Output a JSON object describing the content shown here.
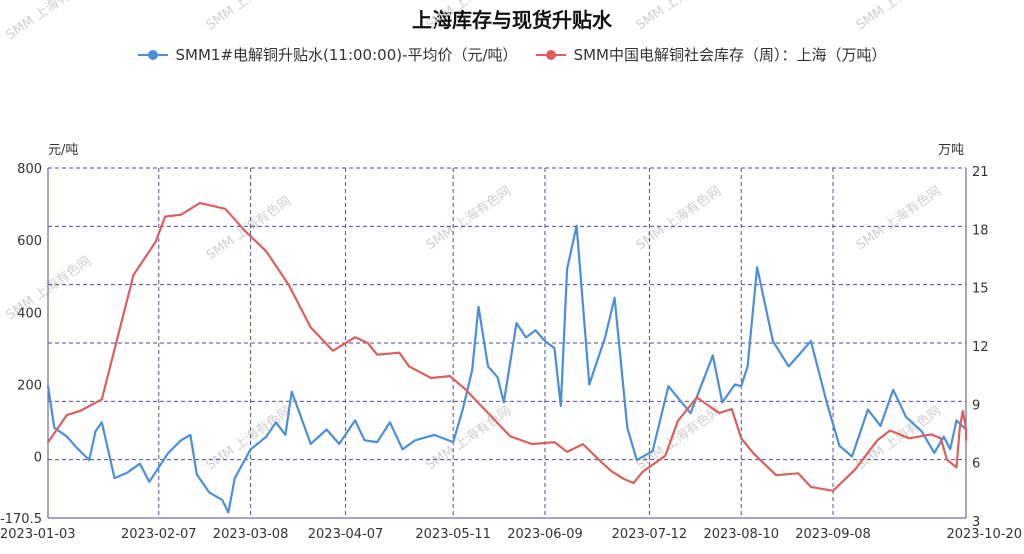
{
  "chart_data": {
    "type": "line",
    "title": "上海库存与现货升贴水",
    "left_unit": "元/吨",
    "right_unit": "万吨",
    "left_ylim": [
      -170.5,
      800
    ],
    "right_ylim": [
      3,
      21
    ],
    "left_ticks": [
      "800",
      "600",
      "400",
      "200",
      "0",
      "-170.5"
    ],
    "right_ticks": [
      "21",
      "18",
      "15",
      "12",
      "9",
      "6",
      "3"
    ],
    "x_range": [
      "2023-01-03",
      "2023-10-20"
    ],
    "x_ticks": [
      "2023-01-03",
      "2023-02-07",
      "2023-03-08",
      "2023-04-07",
      "2023-05-11",
      "2023-06-09",
      "2023-07-12",
      "2023-08-10",
      "2023-09-08",
      "2023-10-20"
    ],
    "grid": true,
    "legend_position": "top",
    "watermark": "SMM 上海有色网",
    "series": [
      {
        "name": "SMM1#电解铜升贴水(11:00:00)-平均价（元/吨）",
        "axis": "left",
        "color": "#4a8fd9",
        "points": [
          [
            "2023-01-03",
            195
          ],
          [
            "2023-01-05",
            80
          ],
          [
            "2023-01-09",
            55
          ],
          [
            "2023-01-12",
            25
          ],
          [
            "2023-01-16",
            -10
          ],
          [
            "2023-01-18",
            70
          ],
          [
            "2023-01-20",
            95
          ],
          [
            "2023-01-24",
            -60
          ],
          [
            "2023-01-28",
            -45
          ],
          [
            "2023-02-01",
            -20
          ],
          [
            "2023-02-04",
            -70
          ],
          [
            "2023-02-07",
            -30
          ],
          [
            "2023-02-10",
            10
          ],
          [
            "2023-02-14",
            45
          ],
          [
            "2023-02-17",
            60
          ],
          [
            "2023-02-19",
            -50
          ],
          [
            "2023-02-23",
            -100
          ],
          [
            "2023-02-27",
            -120
          ],
          [
            "2023-03-01",
            -155
          ],
          [
            "2023-03-03",
            -60
          ],
          [
            "2023-03-08",
            20
          ],
          [
            "2023-03-13",
            55
          ],
          [
            "2023-03-16",
            95
          ],
          [
            "2023-03-19",
            60
          ],
          [
            "2023-03-21",
            180
          ],
          [
            "2023-03-27",
            35
          ],
          [
            "2023-04-01",
            75
          ],
          [
            "2023-04-05",
            35
          ],
          [
            "2023-04-10",
            100
          ],
          [
            "2023-04-13",
            45
          ],
          [
            "2023-04-17",
            40
          ],
          [
            "2023-04-21",
            95
          ],
          [
            "2023-04-25",
            20
          ],
          [
            "2023-04-29",
            45
          ],
          [
            "2023-05-05",
            60
          ],
          [
            "2023-05-11",
            40
          ],
          [
            "2023-05-14",
            130
          ],
          [
            "2023-05-17",
            240
          ],
          [
            "2023-05-19",
            415
          ],
          [
            "2023-05-22",
            250
          ],
          [
            "2023-05-25",
            220
          ],
          [
            "2023-05-27",
            150
          ],
          [
            "2023-05-31",
            370
          ],
          [
            "2023-06-03",
            330
          ],
          [
            "2023-06-06",
            350
          ],
          [
            "2023-06-09",
            320
          ],
          [
            "2023-06-12",
            300
          ],
          [
            "2023-06-14",
            140
          ],
          [
            "2023-06-16",
            520
          ],
          [
            "2023-06-19",
            640
          ],
          [
            "2023-06-23",
            200
          ],
          [
            "2023-06-28",
            330
          ],
          [
            "2023-07-01",
            440
          ],
          [
            "2023-07-05",
            80
          ],
          [
            "2023-07-08",
            -10
          ],
          [
            "2023-07-13",
            15
          ],
          [
            "2023-07-18",
            195
          ],
          [
            "2023-07-25",
            120
          ],
          [
            "2023-08-01",
            280
          ],
          [
            "2023-08-04",
            150
          ],
          [
            "2023-08-08",
            200
          ],
          [
            "2023-08-10",
            195
          ],
          [
            "2023-08-12",
            250
          ],
          [
            "2023-08-15",
            525
          ],
          [
            "2023-08-20",
            320
          ],
          [
            "2023-08-25",
            250
          ],
          [
            "2023-09-01",
            320
          ],
          [
            "2023-09-06",
            150
          ],
          [
            "2023-09-10",
            30
          ],
          [
            "2023-09-14",
            0
          ],
          [
            "2023-09-19",
            130
          ],
          [
            "2023-09-23",
            85
          ],
          [
            "2023-09-27",
            185
          ],
          [
            "2023-10-01",
            110
          ],
          [
            "2023-10-06",
            70
          ],
          [
            "2023-10-10",
            10
          ],
          [
            "2023-10-13",
            55
          ],
          [
            "2023-10-15",
            20
          ],
          [
            "2023-10-17",
            100
          ],
          [
            "2023-10-20",
            75
          ]
        ]
      },
      {
        "name": "SMM中国电解铜社会库存（周）：上海（万吨）",
        "axis": "right",
        "color": "#d9605e",
        "points": [
          [
            "2023-01-03",
            6.9
          ],
          [
            "2023-01-09",
            8.3
          ],
          [
            "2023-01-13",
            8.5
          ],
          [
            "2023-01-20",
            9.1
          ],
          [
            "2023-01-30",
            15.5
          ],
          [
            "2023-02-06",
            17.2
          ],
          [
            "2023-02-09",
            18.5
          ],
          [
            "2023-02-14",
            18.6
          ],
          [
            "2023-02-20",
            19.2
          ],
          [
            "2023-02-28",
            18.9
          ],
          [
            "2023-03-06",
            17.8
          ],
          [
            "2023-03-13",
            16.7
          ],
          [
            "2023-03-20",
            15.0
          ],
          [
            "2023-03-27",
            12.8
          ],
          [
            "2023-04-03",
            11.6
          ],
          [
            "2023-04-10",
            12.3
          ],
          [
            "2023-04-14",
            12.0
          ],
          [
            "2023-04-17",
            11.4
          ],
          [
            "2023-04-24",
            11.5
          ],
          [
            "2023-04-27",
            10.8
          ],
          [
            "2023-05-04",
            10.2
          ],
          [
            "2023-05-10",
            10.3
          ],
          [
            "2023-05-15",
            9.6
          ],
          [
            "2023-05-22",
            8.4
          ],
          [
            "2023-05-29",
            7.2
          ],
          [
            "2023-06-05",
            6.8
          ],
          [
            "2023-06-12",
            6.9
          ],
          [
            "2023-06-16",
            6.4
          ],
          [
            "2023-06-21",
            6.8
          ],
          [
            "2023-06-26",
            6.0
          ],
          [
            "2023-06-30",
            5.4
          ],
          [
            "2023-07-04",
            5.0
          ],
          [
            "2023-07-07",
            4.8
          ],
          [
            "2023-07-10",
            5.4
          ],
          [
            "2023-07-17",
            6.2
          ],
          [
            "2023-07-21",
            8.0
          ],
          [
            "2023-07-27",
            9.2
          ],
          [
            "2023-08-03",
            8.4
          ],
          [
            "2023-08-07",
            8.6
          ],
          [
            "2023-08-10",
            7.1
          ],
          [
            "2023-08-14",
            6.3
          ],
          [
            "2023-08-21",
            5.2
          ],
          [
            "2023-08-28",
            5.3
          ],
          [
            "2023-09-01",
            4.6
          ],
          [
            "2023-09-08",
            4.4
          ],
          [
            "2023-09-15",
            5.5
          ],
          [
            "2023-09-22",
            7.0
          ],
          [
            "2023-09-26",
            7.5
          ],
          [
            "2023-10-02",
            7.1
          ],
          [
            "2023-10-09",
            7.3
          ],
          [
            "2023-10-12",
            7.1
          ],
          [
            "2023-10-14",
            6.0
          ],
          [
            "2023-10-17",
            5.6
          ],
          [
            "2023-10-18",
            7.6
          ],
          [
            "2023-10-19",
            8.5
          ],
          [
            "2023-10-20",
            7.6
          ],
          [
            "2023-10-20",
            7.0
          ]
        ]
      }
    ]
  }
}
